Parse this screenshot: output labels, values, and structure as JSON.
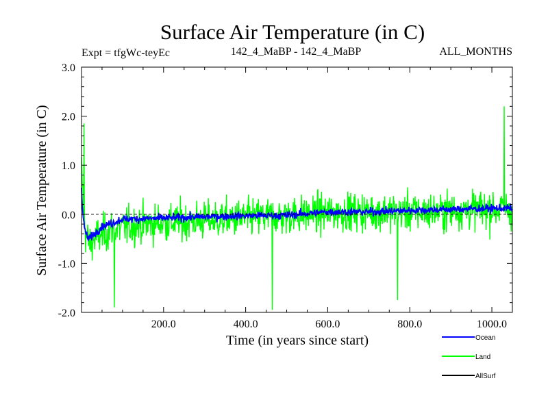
{
  "chart_data": {
    "type": "line",
    "title": "Surface Air Temperature (in C)",
    "subtitle_left": "Expt = tfgWc-teyEc",
    "subtitle_center": "142_4_MaBP - 142_4_MaBP",
    "subtitle_right": "ALL_MONTHS",
    "xlabel": "Time (in years since start)",
    "ylabel": "Surface Air Temperature (in C)",
    "xlim": [
      0,
      1050
    ],
    "ylim": [
      -2.0,
      3.0
    ],
    "xticks": [
      200,
      400,
      600,
      800,
      1000
    ],
    "xtick_labels": [
      "200.0",
      "400.0",
      "600.0",
      "800.0",
      "1000.0"
    ],
    "yticks": [
      -2.0,
      -1.0,
      0.0,
      1.0,
      2.0,
      3.0
    ],
    "ytick_labels": [
      "-2.0",
      "-1.0",
      "0.0",
      "1.0",
      "2.0",
      "3.0"
    ],
    "zero_line": 0.0,
    "series": [
      {
        "name": "Land",
        "color": "#00ff00",
        "x": [
          0,
          5,
          10,
          20,
          40,
          80,
          150,
          250,
          350,
          450,
          550,
          650,
          750,
          850,
          950,
          1050
        ],
        "values": [
          0.9,
          0.2,
          -0.4,
          -0.6,
          -0.45,
          -0.3,
          -0.2,
          -0.15,
          -0.1,
          -0.05,
          0.0,
          0.05,
          0.05,
          0.05,
          0.1,
          0.1
        ],
        "spread": 0.5,
        "extremes": [
          {
            "x": 6,
            "y": 1.85
          },
          {
            "x": 80,
            "y": -1.9
          },
          {
            "x": 465,
            "y": -1.95
          },
          {
            "x": 1030,
            "y": 2.2
          },
          {
            "x": 770,
            "y": -1.75
          }
        ]
      },
      {
        "name": "Ocean",
        "color": "#0000ff",
        "x": [
          0,
          3,
          8,
          15,
          25,
          50,
          100,
          200,
          300,
          400,
          500,
          600,
          700,
          800,
          900,
          1000,
          1050
        ],
        "values": [
          0.5,
          0.0,
          -0.3,
          -0.5,
          -0.45,
          -0.25,
          -0.1,
          -0.08,
          -0.05,
          -0.03,
          -0.02,
          0.05,
          0.05,
          0.08,
          0.1,
          0.12,
          0.12
        ],
        "spread": 0.1
      },
      {
        "name": "AllSurf",
        "color": "#000000",
        "x": [],
        "values": []
      }
    ],
    "legend": [
      "Ocean",
      "Land",
      "AllSurf"
    ],
    "legend_position": "bottom-right"
  }
}
